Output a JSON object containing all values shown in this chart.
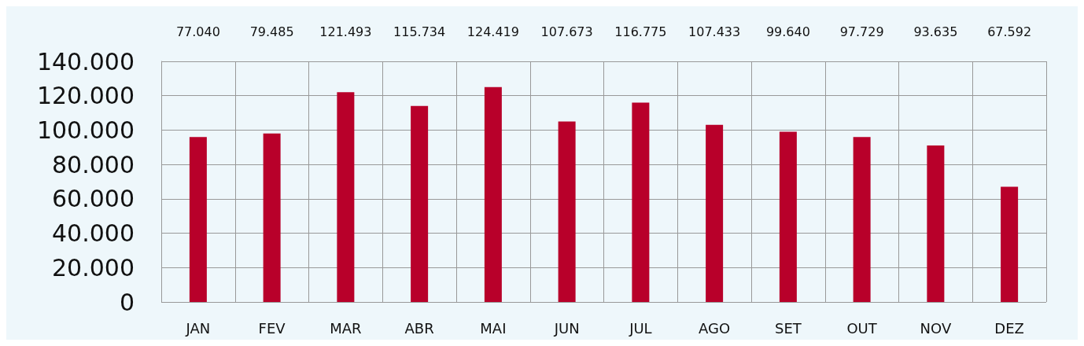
{
  "chart_data": {
    "type": "bar",
    "categories": [
      "JAN",
      "FEV",
      "MAR",
      "ABR",
      "MAI",
      "JUN",
      "JUL",
      "AGO",
      "SET",
      "OUT",
      "NOV",
      "DEZ"
    ],
    "values": [
      96000,
      98000,
      122000,
      114000,
      125000,
      105000,
      116000,
      103000,
      99000,
      96000,
      91000,
      67000
    ],
    "annotations": [
      "77.040",
      "79.485",
      "121.493",
      "115.734",
      "124.419",
      "107.673",
      "116.775",
      "107.433",
      "99.640",
      "97.729",
      "93.635",
      "67.592"
    ],
    "color": "#b8002a",
    "ylim": [
      0,
      140000
    ],
    "yticks": [
      {
        "value": 0,
        "label": "0"
      },
      {
        "value": 20000,
        "label": "20.000"
      },
      {
        "value": 40000,
        "label": "40.000"
      },
      {
        "value": 60000,
        "label": "60.000"
      },
      {
        "value": 80000,
        "label": "80.000"
      },
      {
        "value": 100000,
        "label": "100.000"
      },
      {
        "value": 120000,
        "label": "120.000"
      },
      {
        "value": 140000,
        "label": "140.000"
      }
    ],
    "grid": true
  }
}
